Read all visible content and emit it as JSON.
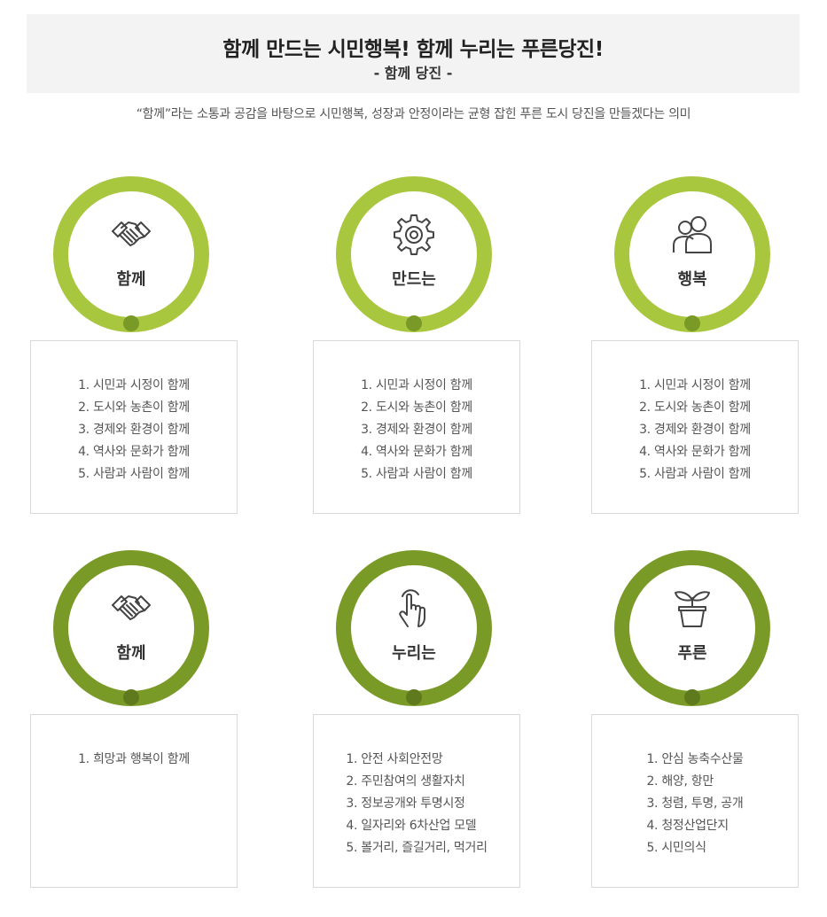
{
  "header": {
    "title": "함께 만드는 시민행복! 함께 누리는 푸른당진!",
    "subtitle": "- 함께 당진 -"
  },
  "description": "“함께”라는 소통과 공감을 바탕으로 시민행복, 성장과 안정이라는 균형 잡힌 푸른 도시 당진을 만들겠다는 의미",
  "colors": {
    "ring_light": "#a9c63f",
    "ring_dark": "#7a9a27",
    "dot_light_row": "#7a9a27",
    "dot_dark_row": "#5f7a1c"
  },
  "cards": [
    {
      "icon": "handshake-icon",
      "label": "함께",
      "items": [
        "1. 시민과 시정이 함께",
        "2. 도시와 농촌이 함께",
        "3. 경제와 환경이 함께",
        "4. 역사와 문화가 함께",
        "5. 사람과 사람이 함께"
      ]
    },
    {
      "icon": "gear-icon",
      "label": "만드는",
      "items": [
        "1. 시민과 시정이 함께",
        "2. 도시와 농촌이 함께",
        "3. 경제와 환경이 함께",
        "4. 역사와 문화가 함께",
        "5. 사람과 사람이 함께"
      ]
    },
    {
      "icon": "people-icon",
      "label": "행복",
      "items": [
        "1. 시민과 시정이 함께",
        "2. 도시와 농촌이 함께",
        "3. 경제와 환경이 함께",
        "4. 역사와 문화가 함께",
        "5. 사람과 사람이 함께"
      ]
    },
    {
      "icon": "handshake-icon",
      "label": "함께",
      "items": [
        "1. 희망과 행복이 함께"
      ]
    },
    {
      "icon": "hand-pointer-icon",
      "label": "누리는",
      "items": [
        "1. 안전 사회안전망",
        "2. 주민참여의 생활자치",
        "3. 정보공개와 투명시정",
        "4. 일자리와 6차산업 모델",
        "5. 볼거리, 즐길거리, 먹거리"
      ]
    },
    {
      "icon": "plant-icon",
      "label": "푸른",
      "items": [
        "1. 안심 농축수산물",
        "2. 해양, 항만",
        "3. 청렴, 투명, 공개",
        "4. 청정산업단지",
        "5. 시민의식"
      ]
    }
  ]
}
